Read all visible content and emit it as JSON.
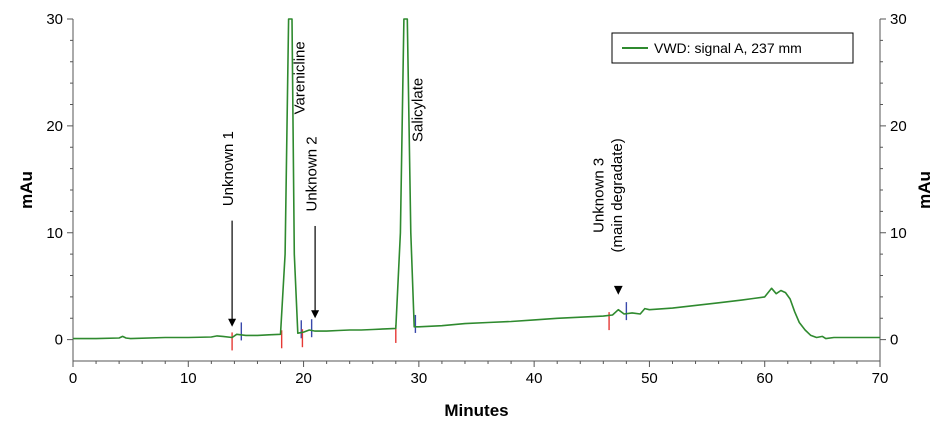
{
  "chart_data": {
    "type": "line",
    "xlabel": "Minutes",
    "ylabel": "mAu",
    "ylabel_right": "mAu",
    "xlim": [
      0,
      70
    ],
    "ylim": [
      -2,
      30
    ],
    "xticks": [
      "0",
      "10",
      "20",
      "30",
      "40",
      "50",
      "60",
      "70"
    ],
    "yticks": [
      "0",
      "10",
      "20",
      "30"
    ],
    "grid": false,
    "legend_position": "top-right",
    "colors": {
      "trace": "#2f8a2f",
      "marker_start": "#e53935",
      "marker_end": "#3949ab",
      "axis": "#555555"
    },
    "series": [
      {
        "name": "VWD: signal A, 237 mm",
        "x": [
          0,
          2,
          4,
          4.3,
          4.6,
          5,
          8,
          10,
          12,
          12.5,
          13,
          13.8,
          14.2,
          15,
          16,
          17,
          18,
          18.4,
          18.7,
          19.0,
          19.2,
          19.5,
          20,
          20.5,
          21,
          22,
          23,
          24,
          25,
          26,
          27,
          28,
          28.4,
          28.7,
          29.0,
          29.3,
          29.6,
          30,
          32,
          34,
          36,
          38,
          40,
          42,
          44,
          46,
          46.8,
          47.3,
          47.8,
          48.5,
          49.2,
          49.6,
          50,
          52,
          54,
          56,
          58,
          59,
          60,
          60.6,
          61,
          61.4,
          61.8,
          62.2,
          62.6,
          63,
          63.5,
          64,
          64.5,
          65,
          65.3,
          66,
          68,
          70
        ],
        "y": [
          0.1,
          0.1,
          0.15,
          0.3,
          0.15,
          0.1,
          0.2,
          0.2,
          0.25,
          0.35,
          0.3,
          0.2,
          0.5,
          0.4,
          0.4,
          0.45,
          0.5,
          8,
          30,
          30,
          8,
          0.6,
          0.7,
          0.9,
          0.8,
          0.8,
          0.85,
          0.9,
          0.9,
          0.95,
          1.0,
          1.05,
          10,
          30,
          30,
          10,
          1.2,
          1.2,
          1.3,
          1.5,
          1.6,
          1.7,
          1.85,
          2.0,
          2.1,
          2.2,
          2.3,
          2.8,
          2.4,
          2.5,
          2.4,
          2.9,
          2.8,
          2.95,
          3.2,
          3.45,
          3.7,
          3.85,
          4.0,
          4.8,
          4.3,
          4.6,
          4.4,
          3.8,
          2.6,
          1.6,
          0.9,
          0.4,
          0.2,
          0.3,
          0.1,
          0.2,
          0.2,
          0.2
        ]
      }
    ],
    "peak_markers": [
      {
        "start": 13.8,
        "end": 14.6,
        "level": 0.3
      },
      {
        "start": 18.1,
        "end": 19.8,
        "level": 0.5
      },
      {
        "start": 19.9,
        "end": 20.7,
        "level": 0.6
      },
      {
        "start": 28.0,
        "end": 29.7,
        "level": 1.0
      },
      {
        "start": 46.5,
        "end": 48.0,
        "level": 2.2
      }
    ],
    "annotations": [
      {
        "text": "Unknown 1",
        "x": 13.9,
        "y": 16,
        "arrow": true,
        "arrow_y": 1.2
      },
      {
        "text": "Varenicline",
        "x": 20.1,
        "y": 24.5
      },
      {
        "text": "Unknown 2",
        "x": 21.1,
        "y": 15.5,
        "arrow": true,
        "arrow_y": 2.0
      },
      {
        "text": "Salicylate",
        "x": 30.3,
        "y": 21.5
      },
      {
        "text": "Unknown 3",
        "x": 46.0,
        "y": 13.5
      },
      {
        "text": "(main degradate)",
        "x": 47.6,
        "y": 13.5
      },
      {
        "text": "▼",
        "x": 47.3,
        "y": 4.2
      }
    ]
  }
}
